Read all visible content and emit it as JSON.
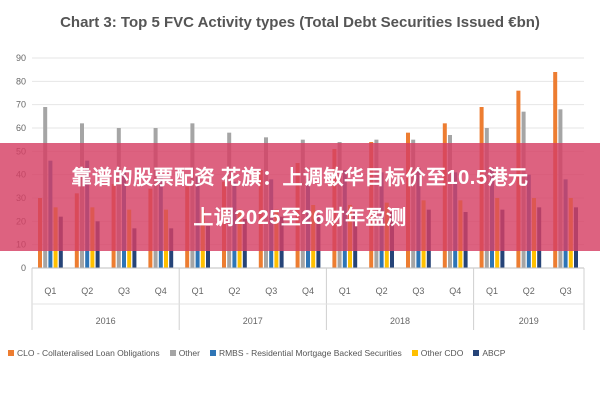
{
  "chart_data": {
    "type": "bar",
    "title": "Chart 3: Top 5 FVC Activity types (Total Debt Securities Issued €bn)",
    "ylim": [
      0,
      90
    ],
    "yticks": [
      "0",
      "10",
      "20",
      "30",
      "40",
      "50",
      "60",
      "70",
      "80",
      "90"
    ],
    "categories": [
      "Q1",
      "Q2",
      "Q3",
      "Q4",
      "Q1",
      "Q2",
      "Q3",
      "Q4",
      "Q1",
      "Q2",
      "Q3",
      "Q4",
      "Q1",
      "Q2",
      "Q3"
    ],
    "groups": [
      {
        "label": "2016",
        "span": 4
      },
      {
        "label": "2017",
        "span": 4
      },
      {
        "label": "2018",
        "span": 4
      },
      {
        "label": "2019",
        "span": 3
      }
    ],
    "series": [
      {
        "name": "CLO - Collateralised Loan Obligations",
        "color": "#ed7d31",
        "values": [
          30,
          32,
          36,
          34,
          35,
          37,
          42,
          45,
          51,
          54,
          58,
          62,
          69,
          76,
          84
        ]
      },
      {
        "name": "Other",
        "color": "#a5a5a5",
        "values": [
          69,
          62,
          60,
          60,
          62,
          58,
          56,
          55,
          54,
          55,
          55,
          57,
          60,
          67,
          68
        ]
      },
      {
        "name": "RMBS - Residential Mortgage Backed Securities",
        "color": "#2e75b6",
        "values": [
          46,
          46,
          41,
          40,
          39,
          37,
          38,
          38,
          42,
          41,
          43,
          41,
          43,
          40,
          38
        ]
      },
      {
        "name": "Other CDO",
        "color": "#ffc000",
        "values": [
          26,
          26,
          25,
          25,
          25,
          25,
          25,
          27,
          27,
          28,
          29,
          29,
          30,
          30,
          30
        ]
      },
      {
        "name": "ABCP",
        "color": "#264478",
        "values": [
          22,
          20,
          17,
          17,
          18,
          21,
          22,
          23,
          24,
          24,
          25,
          24,
          25,
          26,
          26
        ]
      }
    ],
    "grid": true,
    "legend": "bottom"
  },
  "overlay": {
    "line1": "靠谱的股票配资 花旗：上调敏华目标价至10.5港元",
    "line2": "上调2025至26财年盈测"
  }
}
